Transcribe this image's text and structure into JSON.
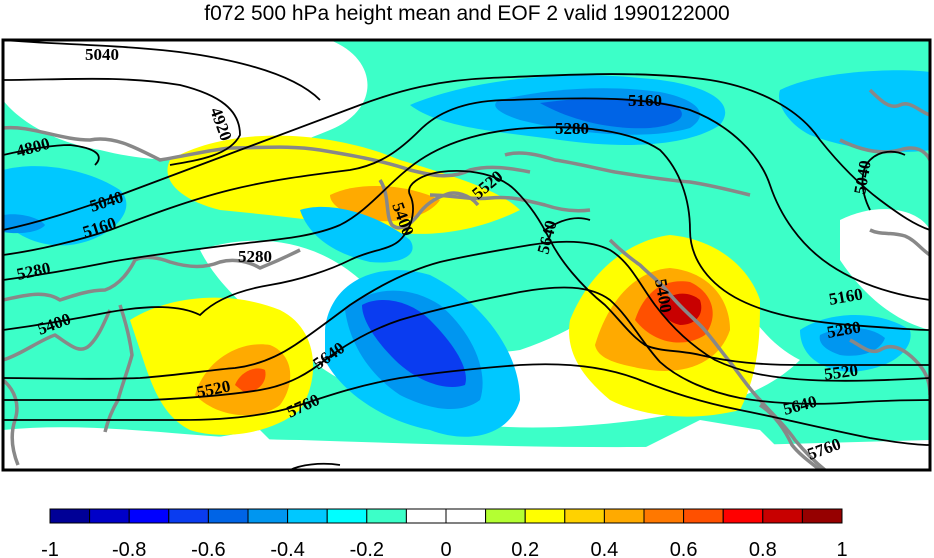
{
  "title": "f072 500 hPa height mean and EOF 2 valid 1990122000",
  "map": {
    "contour_labels": [
      "5040",
      "4920",
      "4800",
      "5160",
      "5280",
      "5040",
      "5160",
      "5520",
      "5400",
      "5280",
      "5640",
      "5280",
      "5400",
      "5040",
      "5400",
      "5640",
      "5520",
      "5760",
      "5160",
      "5280",
      "5520",
      "5640",
      "5760"
    ]
  },
  "colorbar": {
    "tick_labels": [
      "-1",
      "-0.8",
      "-0.6",
      "-0.4",
      "-0.2",
      "0",
      "0.2",
      "0.4",
      "0.6",
      "0.8",
      "1"
    ],
    "colors": [
      "#000096",
      "#0000c8",
      "#0000ff",
      "#0a3cf0",
      "#0064e6",
      "#0096f0",
      "#00c8ff",
      "#00ffff",
      "#3cffc8",
      "#ffffff",
      "#ffffff",
      "#b4ff32",
      "#ffff00",
      "#ffd200",
      "#ffaa00",
      "#ff7800",
      "#ff5000",
      "#ff0000",
      "#c80000",
      "#960000"
    ]
  }
}
